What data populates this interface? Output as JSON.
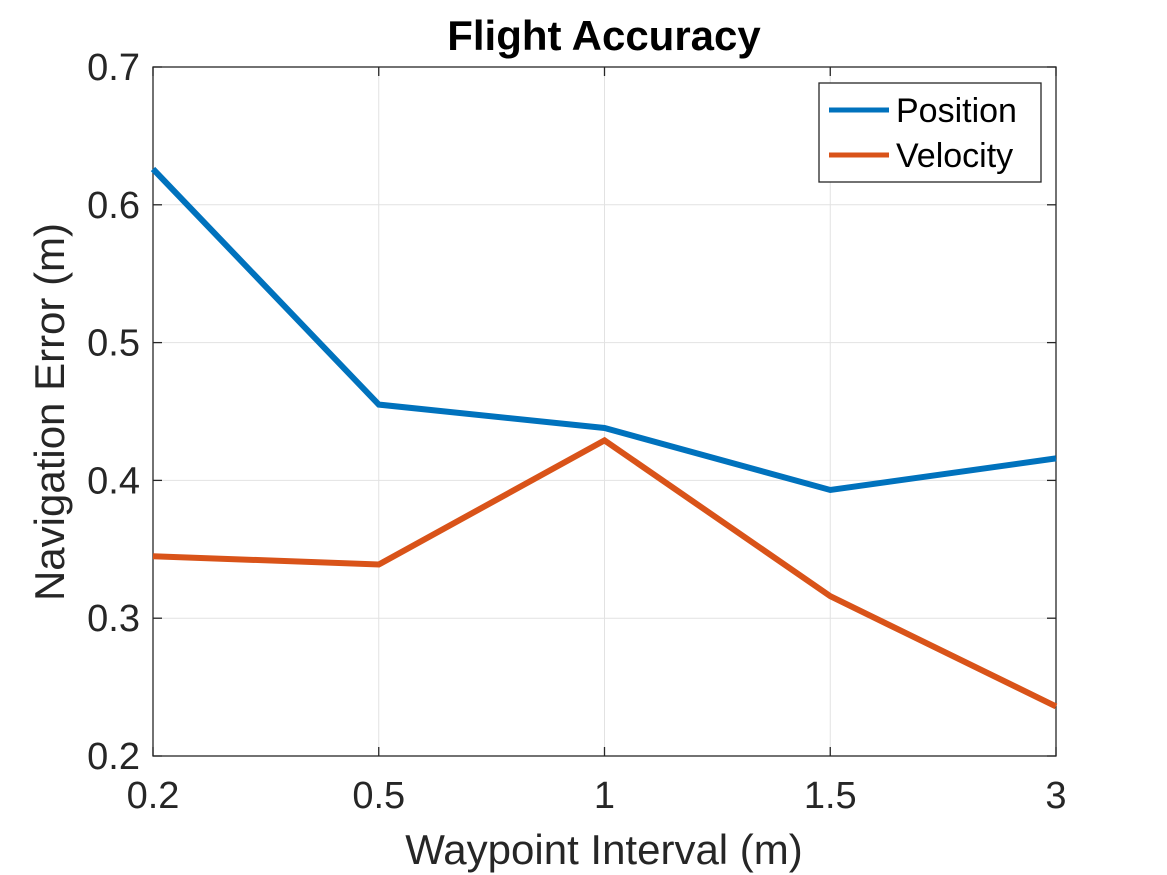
{
  "chart_data": {
    "type": "line",
    "title": "Flight Accuracy",
    "xlabel": "Waypoint Interval (m)",
    "ylabel": "Navigation Error (m)",
    "categories": [
      "0.2",
      "0.5",
      "1",
      "1.5",
      "3"
    ],
    "ylim": [
      0.2,
      0.7
    ],
    "yticks": [
      "0.2",
      "0.3",
      "0.4",
      "0.5",
      "0.6",
      "0.7"
    ],
    "grid": true,
    "legend_position": "top-right",
    "series": [
      {
        "name": "Position",
        "color": "#0072BD",
        "values": [
          0.626,
          0.455,
          0.438,
          0.393,
          0.416
        ]
      },
      {
        "name": "Velocity",
        "color": "#D95319",
        "values": [
          0.345,
          0.339,
          0.429,
          0.316,
          0.236
        ]
      }
    ]
  }
}
